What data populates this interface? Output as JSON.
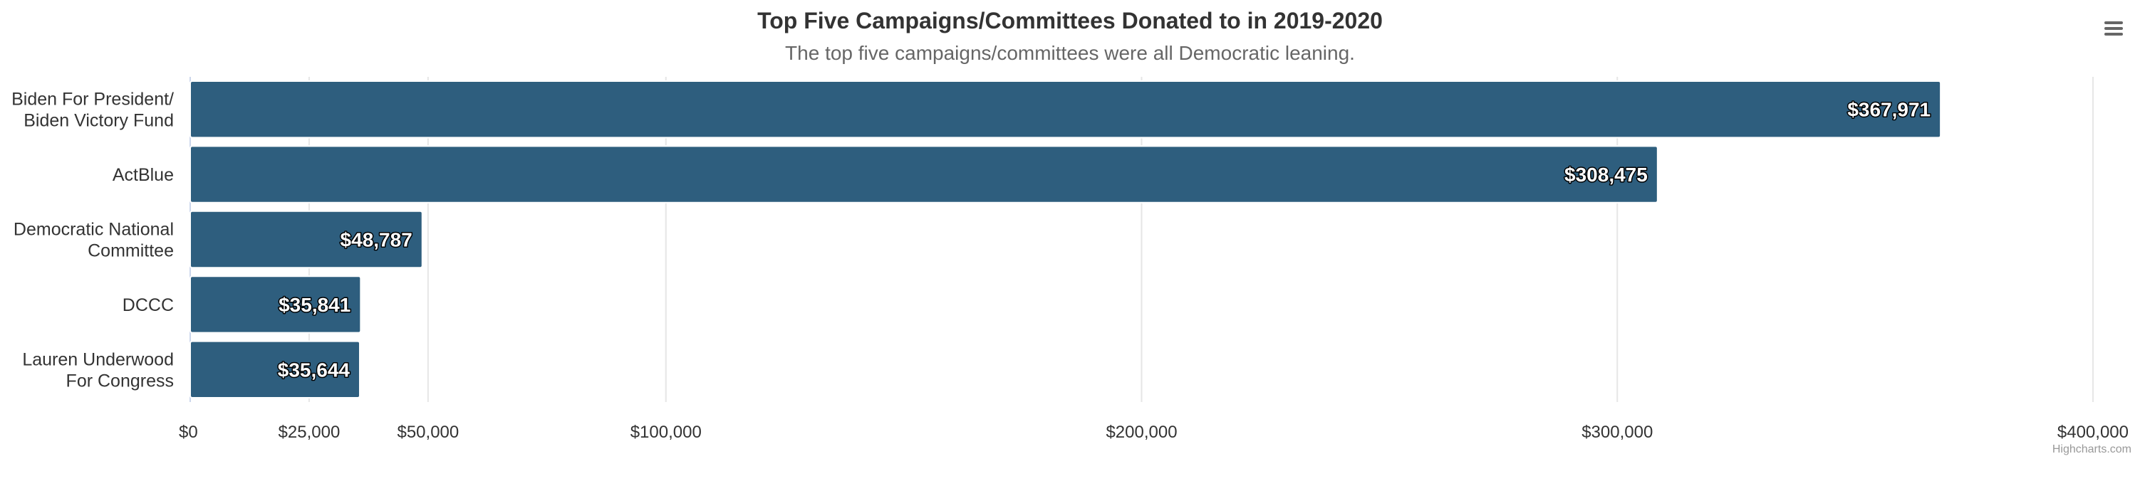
{
  "chart_data": {
    "type": "bar",
    "orientation": "horizontal",
    "title": "Top Five Campaigns/Committees Donated to in 2019-2020",
    "subtitle": "The top five campaigns/committees were all Democratic leaning.",
    "categories": [
      [
        "Biden For President/",
        "Biden Victory Fund"
      ],
      [
        "ActBlue"
      ],
      [
        "Democratic National",
        "Committee"
      ],
      [
        "DCCC"
      ],
      [
        "Lauren Underwood",
        "For Congress"
      ]
    ],
    "values": [
      367971,
      308475,
      48787,
      35841,
      35644
    ],
    "data_labels": [
      "$367,971",
      "$308,475",
      "$48,787",
      "$35,841",
      "$35,644"
    ],
    "x_ticks": [
      0,
      25000,
      50000,
      100000,
      200000,
      300000,
      400000
    ],
    "x_tick_labels": [
      "$0",
      "$25,000",
      "$50,000",
      "$100,000",
      "$200,000",
      "$300,000",
      "$400,000"
    ],
    "xlim": [
      0,
      400000
    ],
    "grid": true,
    "bar_color": "#2e5e7e",
    "grid_color": "#e6e6e6",
    "axis_color": "#ccd6eb",
    "credits": "Highcharts.com",
    "menu_icon": "hamburger-menu-icon"
  }
}
